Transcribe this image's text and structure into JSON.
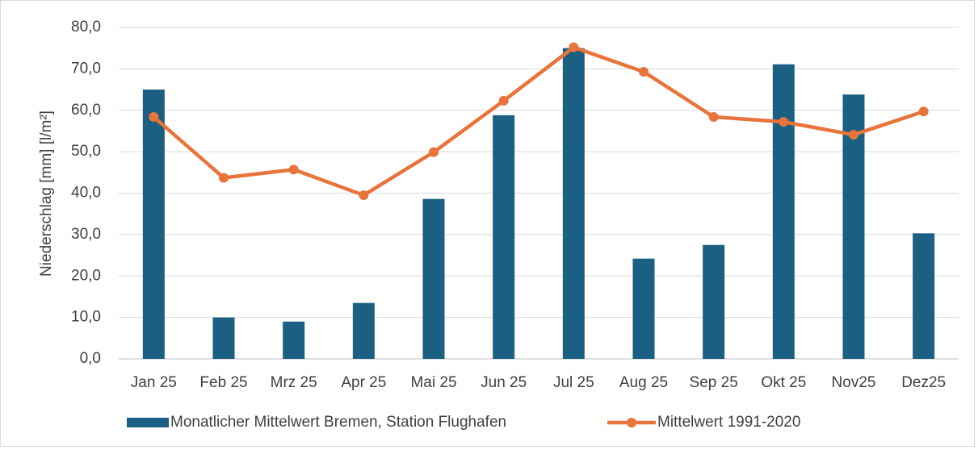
{
  "chart_data": {
    "type": "bar",
    "y_label": "Niederschlag [mm] [l/m²]",
    "categories": [
      "Jan 25",
      "Feb 25",
      "Mrz 25",
      "Apr 25",
      "Mai 25",
      "Jun 25",
      "Jul 25",
      "Aug 25",
      "Sep 25",
      "Okt 25",
      "Nov25",
      "Dez25"
    ],
    "series": [
      {
        "name": "Monatlicher Mittelwert Bremen, Station Flughafen",
        "type": "bar",
        "color": "#1b5f82",
        "values": [
          65.0,
          10.0,
          9.0,
          13.5,
          38.6,
          58.8,
          75.0,
          24.2,
          27.5,
          71.1,
          63.8,
          30.3
        ]
      },
      {
        "name": "Mittelwert 1991-2020",
        "type": "line",
        "color": "#e8743b",
        "values": [
          58.4,
          43.7,
          45.7,
          39.5,
          49.9,
          62.3,
          75.2,
          69.3,
          58.4,
          57.2,
          54.1,
          59.7
        ]
      }
    ],
    "ylim": [
      0,
      80
    ],
    "yticks": [
      {
        "value": 0,
        "label": "0,0"
      },
      {
        "value": 10,
        "label": "10,0"
      },
      {
        "value": 20,
        "label": "20,0"
      },
      {
        "value": 30,
        "label": "30,0"
      },
      {
        "value": 40,
        "label": "40,0"
      },
      {
        "value": 50,
        "label": "50,0"
      },
      {
        "value": 60,
        "label": "60,0"
      },
      {
        "value": 70,
        "label": "70,0"
      },
      {
        "value": 80,
        "label": "80,0"
      }
    ],
    "grid": true,
    "legend": "bottom"
  }
}
